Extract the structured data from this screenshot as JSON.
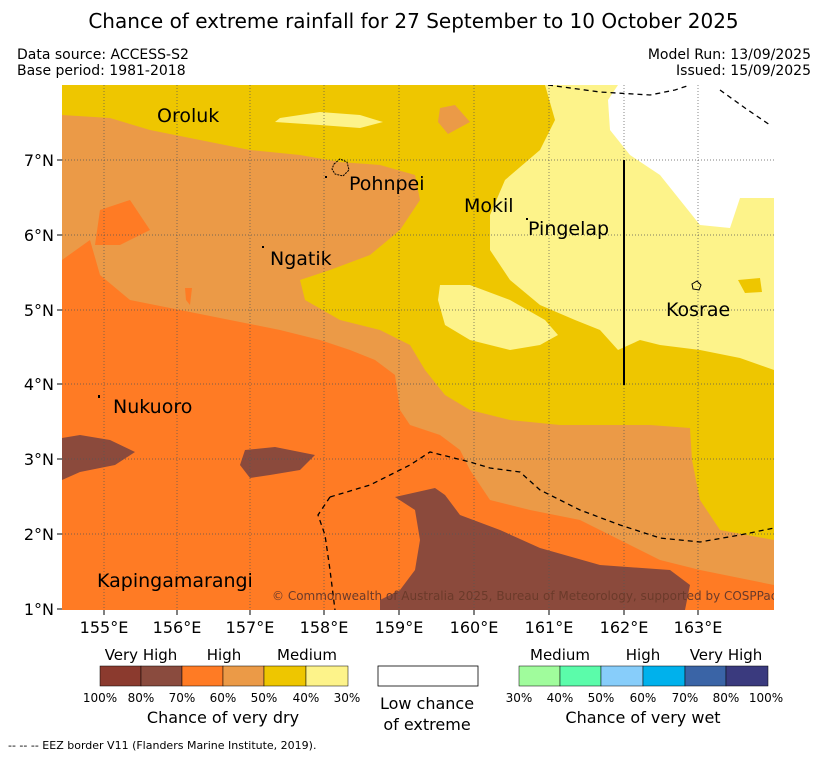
{
  "title": "Chance of extreme rainfall for 27 September to 10 October 2025",
  "meta": {
    "data_source": "Data source: ACCESS-S2",
    "base_period": "Base period: 1981-2018",
    "model_run": "Model Run: 13/09/2025",
    "issued": "Issued: 15/09/2025"
  },
  "map": {
    "lat_labels": [
      "7°N",
      "6°N",
      "5°N",
      "4°N",
      "3°N",
      "2°N",
      "1°N"
    ],
    "lon_labels": [
      "155°E",
      "156°E",
      "157°E",
      "158°E",
      "159°E",
      "160°E",
      "161°E",
      "162°E",
      "163°E"
    ],
    "places": {
      "oroluk": "Oroluk",
      "pohnpei": "Pohnpei",
      "mokil": "Mokil",
      "pingelap": "Pingelap",
      "ngatik": "Ngatik",
      "kosrae": "Kosrae",
      "nukuoro": "Nukuoro",
      "kapingamarangi": "Kapingamarangi"
    },
    "copyright": "© Commonwealth of Australia 2025, Bureau of Meteorology, supported by COSPPac",
    "colors": {
      "dry_100_80": "#8b4a3c",
      "dry_80_70": "#874b3d",
      "dry_70_60": "#ff7b24",
      "dry_60_50": "#eb9a47",
      "dry_50_40": "#eec600",
      "dry_40_30": "#fdf38a",
      "neutral": "#ffffff"
    }
  },
  "legend": {
    "dry": {
      "categories": [
        "Very High",
        "High",
        "Medium"
      ],
      "ticks": [
        "100%",
        "80%",
        "70%",
        "60%",
        "50%",
        "40%",
        "30%"
      ],
      "caption": "Chance of very dry",
      "colors": [
        "#8b3a2e",
        "#8a4b3e",
        "#ff7b24",
        "#eb9a47",
        "#eec600",
        "#fdf38a"
      ]
    },
    "neutral": {
      "caption_line1": "Low chance",
      "caption_line2": "of extreme"
    },
    "wet": {
      "categories": [
        "Medium",
        "High",
        "Very High"
      ],
      "ticks": [
        "30%",
        "40%",
        "50%",
        "60%",
        "70%",
        "80%",
        "100%"
      ],
      "caption": "Chance of very wet",
      "colors": [
        "#a0fc9c",
        "#5bfcaa",
        "#87cdfa",
        "#00b1ec",
        "#3a64a6",
        "#3a3a7e"
      ]
    }
  },
  "footnote": "--  --  -- EEZ border V11 (Flanders Marine Institute, 2019)."
}
